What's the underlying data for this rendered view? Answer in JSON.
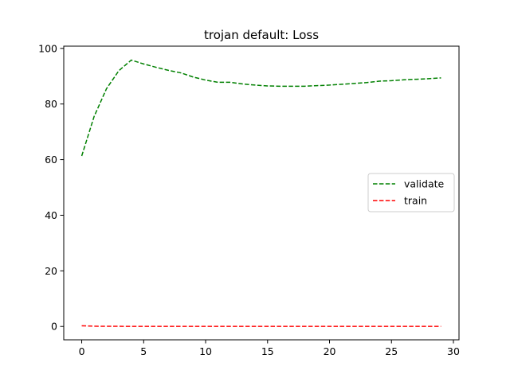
{
  "chart_data": {
    "type": "line",
    "title": "trojan default: Loss",
    "xlabel": "",
    "ylabel": "",
    "xlim": [
      -1.45,
      30.45
    ],
    "ylim": [
      -4.8,
      100.8
    ],
    "xticks": [
      0,
      5,
      10,
      15,
      20,
      25,
      30
    ],
    "yticks": [
      0,
      20,
      40,
      60,
      80,
      100
    ],
    "grid": false,
    "legend_position": "center-right",
    "x": [
      0,
      1,
      2,
      3,
      4,
      5,
      6,
      7,
      8,
      9,
      10,
      11,
      12,
      13,
      14,
      15,
      16,
      17,
      18,
      19,
      20,
      21,
      22,
      23,
      24,
      25,
      26,
      27,
      28,
      29
    ],
    "series": [
      {
        "name": "validate",
        "color": "#008000",
        "style": "dashed",
        "values": [
          61.3,
          75.5,
          85.5,
          92.0,
          95.8,
          94.4,
          93.2,
          92.1,
          91.2,
          89.7,
          88.6,
          87.8,
          87.8,
          87.2,
          86.8,
          86.5,
          86.4,
          86.4,
          86.4,
          86.6,
          86.8,
          87.1,
          87.4,
          87.7,
          88.2,
          88.4,
          88.7,
          88.9,
          89.1,
          89.4
        ]
      },
      {
        "name": "train",
        "color": "#ff0000",
        "style": "dashed",
        "values": [
          0.25,
          0.1,
          0.05,
          0.05,
          0.03,
          0.03,
          0.02,
          0.02,
          0.02,
          0.02,
          0.02,
          0.02,
          0.02,
          0.02,
          0.02,
          0.02,
          0.02,
          0.02,
          0.02,
          0.02,
          0.02,
          0.02,
          0.02,
          0.02,
          0.02,
          0.02,
          0.02,
          0.02,
          0.02,
          0.02
        ]
      }
    ]
  }
}
